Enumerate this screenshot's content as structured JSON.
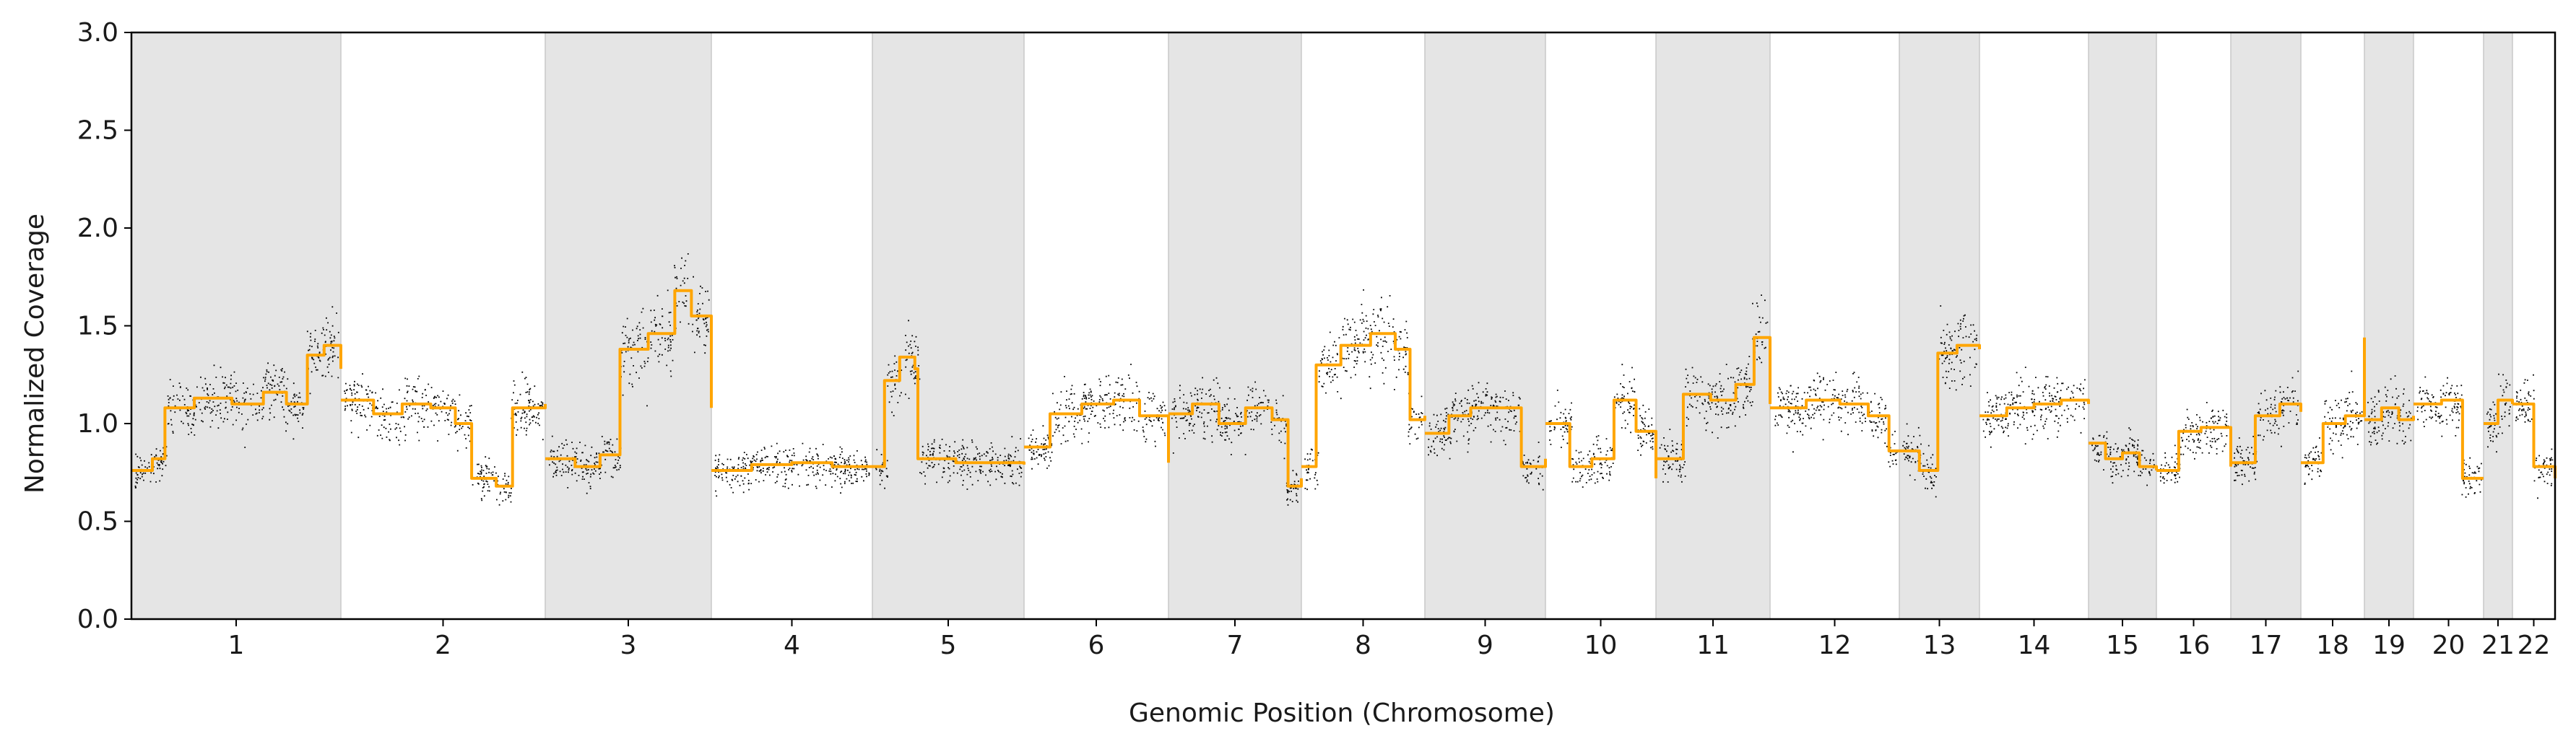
{
  "chart_data": {
    "type": "scatter",
    "title": "",
    "xlabel": "Genomic Position (Chromosome)",
    "ylabel": "Normalized Coverage",
    "ylim": [
      0.0,
      3.0
    ],
    "yticks": [
      "0.0",
      "0.5",
      "1.0",
      "1.5",
      "2.0",
      "2.5",
      "3.0"
    ],
    "grid": false,
    "legend": "none",
    "colors": {
      "points": "#000000",
      "segments": "#ffa500",
      "band": "#e5e5e5",
      "band_edge": "#c8c8c8",
      "axis": "#000000"
    },
    "chromosomes": [
      {
        "label": "1",
        "shaded": true,
        "segments": [
          [
            0.0,
            0.76
          ],
          [
            0.1,
            0.82
          ],
          [
            0.16,
            1.08
          ],
          [
            0.3,
            1.13
          ],
          [
            0.48,
            1.1
          ],
          [
            0.56,
            1.1
          ],
          [
            0.63,
            1.16
          ],
          [
            0.74,
            1.1
          ],
          [
            0.84,
            1.35
          ],
          [
            0.92,
            1.4
          ],
          [
            1.0,
            1.28
          ]
        ]
      },
      {
        "label": "2",
        "shaded": false,
        "segments": [
          [
            0.0,
            1.12
          ],
          [
            0.16,
            1.05
          ],
          [
            0.3,
            1.1
          ],
          [
            0.44,
            1.08
          ],
          [
            0.56,
            1.0
          ],
          [
            0.64,
            0.72
          ],
          [
            0.76,
            0.68
          ],
          [
            0.84,
            1.08
          ],
          [
            1.0,
            1.1
          ]
        ]
      },
      {
        "label": "3",
        "shaded": true,
        "segments": [
          [
            0.0,
            0.82
          ],
          [
            0.18,
            0.78
          ],
          [
            0.33,
            0.84
          ],
          [
            0.45,
            1.38
          ],
          [
            0.62,
            1.46
          ],
          [
            0.78,
            1.68
          ],
          [
            0.88,
            1.55
          ],
          [
            1.0,
            1.08
          ]
        ]
      },
      {
        "label": "4",
        "shaded": false,
        "segments": [
          [
            0.0,
            0.76
          ],
          [
            0.25,
            0.79
          ],
          [
            0.5,
            0.8
          ],
          [
            0.75,
            0.78
          ],
          [
            1.0,
            0.78
          ]
        ]
      },
      {
        "label": "5",
        "shaded": true,
        "segments": [
          [
            0.0,
            0.78
          ],
          [
            0.08,
            1.22
          ],
          [
            0.18,
            1.34
          ],
          [
            0.28,
            1.28
          ],
          [
            0.3,
            0.82
          ],
          [
            0.55,
            0.8
          ],
          [
            1.0,
            0.79
          ]
        ]
      },
      {
        "label": "6",
        "shaded": false,
        "segments": [
          [
            0.0,
            0.88
          ],
          [
            0.18,
            1.05
          ],
          [
            0.4,
            1.1
          ],
          [
            0.62,
            1.12
          ],
          [
            0.8,
            1.04
          ],
          [
            1.0,
            0.8
          ]
        ]
      },
      {
        "label": "7",
        "shaded": true,
        "segments": [
          [
            0.0,
            1.05
          ],
          [
            0.18,
            1.1
          ],
          [
            0.38,
            1.0
          ],
          [
            0.58,
            1.08
          ],
          [
            0.78,
            1.02
          ],
          [
            0.9,
            0.68
          ],
          [
            1.0,
            0.72
          ]
        ]
      },
      {
        "label": "8",
        "shaded": false,
        "segments": [
          [
            0.0,
            0.78
          ],
          [
            0.12,
            1.3
          ],
          [
            0.32,
            1.4
          ],
          [
            0.56,
            1.46
          ],
          [
            0.76,
            1.38
          ],
          [
            0.88,
            1.02
          ],
          [
            1.0,
            1.04
          ]
        ]
      },
      {
        "label": "9",
        "shaded": true,
        "segments": [
          [
            0.0,
            0.95
          ],
          [
            0.2,
            1.04
          ],
          [
            0.38,
            1.08
          ],
          [
            0.6,
            1.08
          ],
          [
            0.8,
            0.78
          ],
          [
            1.0,
            0.82
          ]
        ]
      },
      {
        "label": "10",
        "shaded": false,
        "segments": [
          [
            0.0,
            1.0
          ],
          [
            0.22,
            0.78
          ],
          [
            0.42,
            0.82
          ],
          [
            0.62,
            1.12
          ],
          [
            0.82,
            0.96
          ],
          [
            1.0,
            0.72
          ]
        ]
      },
      {
        "label": "11",
        "shaded": true,
        "segments": [
          [
            0.0,
            0.82
          ],
          [
            0.24,
            1.15
          ],
          [
            0.48,
            1.12
          ],
          [
            0.7,
            1.2
          ],
          [
            0.86,
            1.44
          ],
          [
            1.0,
            1.1
          ]
        ]
      },
      {
        "label": "12",
        "shaded": false,
        "segments": [
          [
            0.0,
            1.08
          ],
          [
            0.28,
            1.12
          ],
          [
            0.54,
            1.1
          ],
          [
            0.76,
            1.04
          ],
          [
            0.92,
            0.86
          ],
          [
            1.0,
            0.86
          ]
        ]
      },
      {
        "label": "13",
        "shaded": true,
        "segments": [
          [
            0.0,
            0.86
          ],
          [
            0.25,
            0.76
          ],
          [
            0.48,
            1.36
          ],
          [
            0.72,
            1.4
          ],
          [
            1.0,
            1.38
          ]
        ]
      },
      {
        "label": "14",
        "shaded": false,
        "segments": [
          [
            0.0,
            1.04
          ],
          [
            0.25,
            1.08
          ],
          [
            0.5,
            1.1
          ],
          [
            0.75,
            1.12
          ],
          [
            1.0,
            1.1
          ]
        ]
      },
      {
        "label": "15",
        "shaded": true,
        "segments": [
          [
            0.0,
            0.9
          ],
          [
            0.25,
            0.82
          ],
          [
            0.5,
            0.85
          ],
          [
            0.75,
            0.78
          ],
          [
            1.0,
            0.76
          ]
        ]
      },
      {
        "label": "16",
        "shaded": false,
        "segments": [
          [
            0.0,
            0.76
          ],
          [
            0.3,
            0.96
          ],
          [
            0.6,
            0.98
          ],
          [
            1.0,
            0.78
          ]
        ]
      },
      {
        "label": "17",
        "shaded": true,
        "segments": [
          [
            0.0,
            0.8
          ],
          [
            0.35,
            1.04
          ],
          [
            0.7,
            1.1
          ],
          [
            1.0,
            1.06
          ]
        ]
      },
      {
        "label": "18",
        "shaded": false,
        "segments": [
          [
            0.0,
            0.8
          ],
          [
            0.35,
            1.0
          ],
          [
            0.7,
            1.04
          ],
          [
            1.0,
            1.44
          ]
        ]
      },
      {
        "label": "19",
        "shaded": true,
        "segments": [
          [
            0.0,
            1.02
          ],
          [
            0.35,
            1.08
          ],
          [
            0.7,
            1.02
          ],
          [
            1.0,
            1.04
          ]
        ]
      },
      {
        "label": "20",
        "shaded": false,
        "segments": [
          [
            0.0,
            1.1
          ],
          [
            0.4,
            1.12
          ],
          [
            0.7,
            0.72
          ],
          [
            1.0,
            0.72
          ]
        ]
      },
      {
        "label": "21",
        "shaded": true,
        "segments": [
          [
            0.0,
            1.0
          ],
          [
            0.5,
            1.12
          ],
          [
            1.0,
            1.1
          ]
        ]
      },
      {
        "label": "22",
        "shaded": false,
        "segments": [
          [
            0.0,
            1.1
          ],
          [
            0.5,
            0.78
          ],
          [
            1.0,
            0.72
          ]
        ]
      }
    ]
  }
}
